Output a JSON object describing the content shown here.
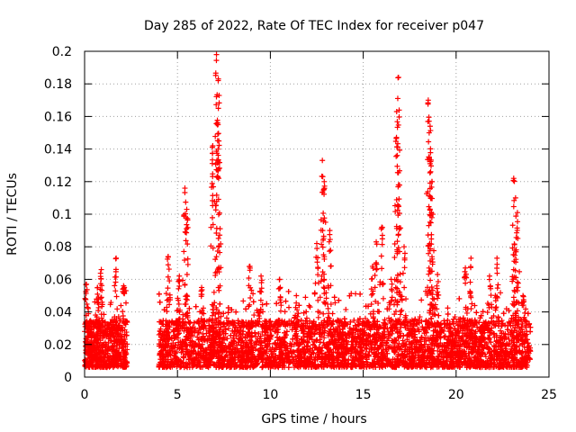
{
  "chart_data": {
    "type": "scatter",
    "title": "Day 285 of 2022, Rate Of TEC Index for receiver p047",
    "xlabel": "GPS time / hours",
    "ylabel": "ROTI / TECUs",
    "xlim": [
      0,
      25
    ],
    "ylim": [
      0,
      0.2
    ],
    "x_ticks": [
      0,
      5,
      10,
      15,
      20,
      25
    ],
    "x_tick_labels": [
      "0",
      "5",
      "10",
      "15",
      "20",
      "25"
    ],
    "y_ticks": [
      0,
      0.02,
      0.04,
      0.06,
      0.08,
      0.1,
      0.12,
      0.14,
      0.16,
      0.18,
      0.2
    ],
    "y_tick_labels": [
      "0",
      "0.02",
      "0.04",
      "0.06",
      "0.08",
      "0.1",
      "0.12",
      "0.14",
      "0.16",
      "0.18",
      "0.2"
    ],
    "grid": true,
    "marker": "+",
    "series_color": "#ff0000",
    "segments": [
      {
        "x_start": 0.0,
        "x_end": 2.3,
        "base_min": 0.006,
        "base_max": 0.035
      },
      {
        "x_start": 4.0,
        "x_end": 24.0,
        "base_min": 0.006,
        "base_max": 0.035
      }
    ],
    "peaks": [
      {
        "x": 0.1,
        "y": 0.057
      },
      {
        "x": 0.7,
        "y": 0.055
      },
      {
        "x": 0.9,
        "y": 0.066
      },
      {
        "x": 1.7,
        "y": 0.073
      },
      {
        "x": 2.1,
        "y": 0.056
      },
      {
        "x": 4.5,
        "y": 0.074
      },
      {
        "x": 5.1,
        "y": 0.062
      },
      {
        "x": 5.4,
        "y": 0.116
      },
      {
        "x": 5.5,
        "y": 0.103
      },
      {
        "x": 6.3,
        "y": 0.055
      },
      {
        "x": 6.9,
        "y": 0.142
      },
      {
        "x": 7.1,
        "y": 0.198
      },
      {
        "x": 7.2,
        "y": 0.183
      },
      {
        "x": 7.2,
        "y": 0.165
      },
      {
        "x": 8.9,
        "y": 0.068
      },
      {
        "x": 9.5,
        "y": 0.062
      },
      {
        "x": 10.5,
        "y": 0.06
      },
      {
        "x": 11.4,
        "y": 0.05
      },
      {
        "x": 12.5,
        "y": 0.082
      },
      {
        "x": 12.8,
        "y": 0.133
      },
      {
        "x": 12.9,
        "y": 0.12
      },
      {
        "x": 13.2,
        "y": 0.09
      },
      {
        "x": 15.5,
        "y": 0.068
      },
      {
        "x": 15.7,
        "y": 0.083
      },
      {
        "x": 16.0,
        "y": 0.092
      },
      {
        "x": 16.5,
        "y": 0.06
      },
      {
        "x": 16.8,
        "y": 0.163
      },
      {
        "x": 16.9,
        "y": 0.184
      },
      {
        "x": 16.9,
        "y": 0.118
      },
      {
        "x": 17.2,
        "y": 0.08
      },
      {
        "x": 18.5,
        "y": 0.17
      },
      {
        "x": 18.6,
        "y": 0.154
      },
      {
        "x": 18.6,
        "y": 0.131
      },
      {
        "x": 18.7,
        "y": 0.12
      },
      {
        "x": 19.0,
        "y": 0.063
      },
      {
        "x": 20.5,
        "y": 0.067
      },
      {
        "x": 20.8,
        "y": 0.073
      },
      {
        "x": 21.8,
        "y": 0.062
      },
      {
        "x": 22.2,
        "y": 0.073
      },
      {
        "x": 23.1,
        "y": 0.122
      },
      {
        "x": 23.2,
        "y": 0.11
      },
      {
        "x": 23.3,
        "y": 0.101
      },
      {
        "x": 23.6,
        "y": 0.05
      }
    ]
  }
}
